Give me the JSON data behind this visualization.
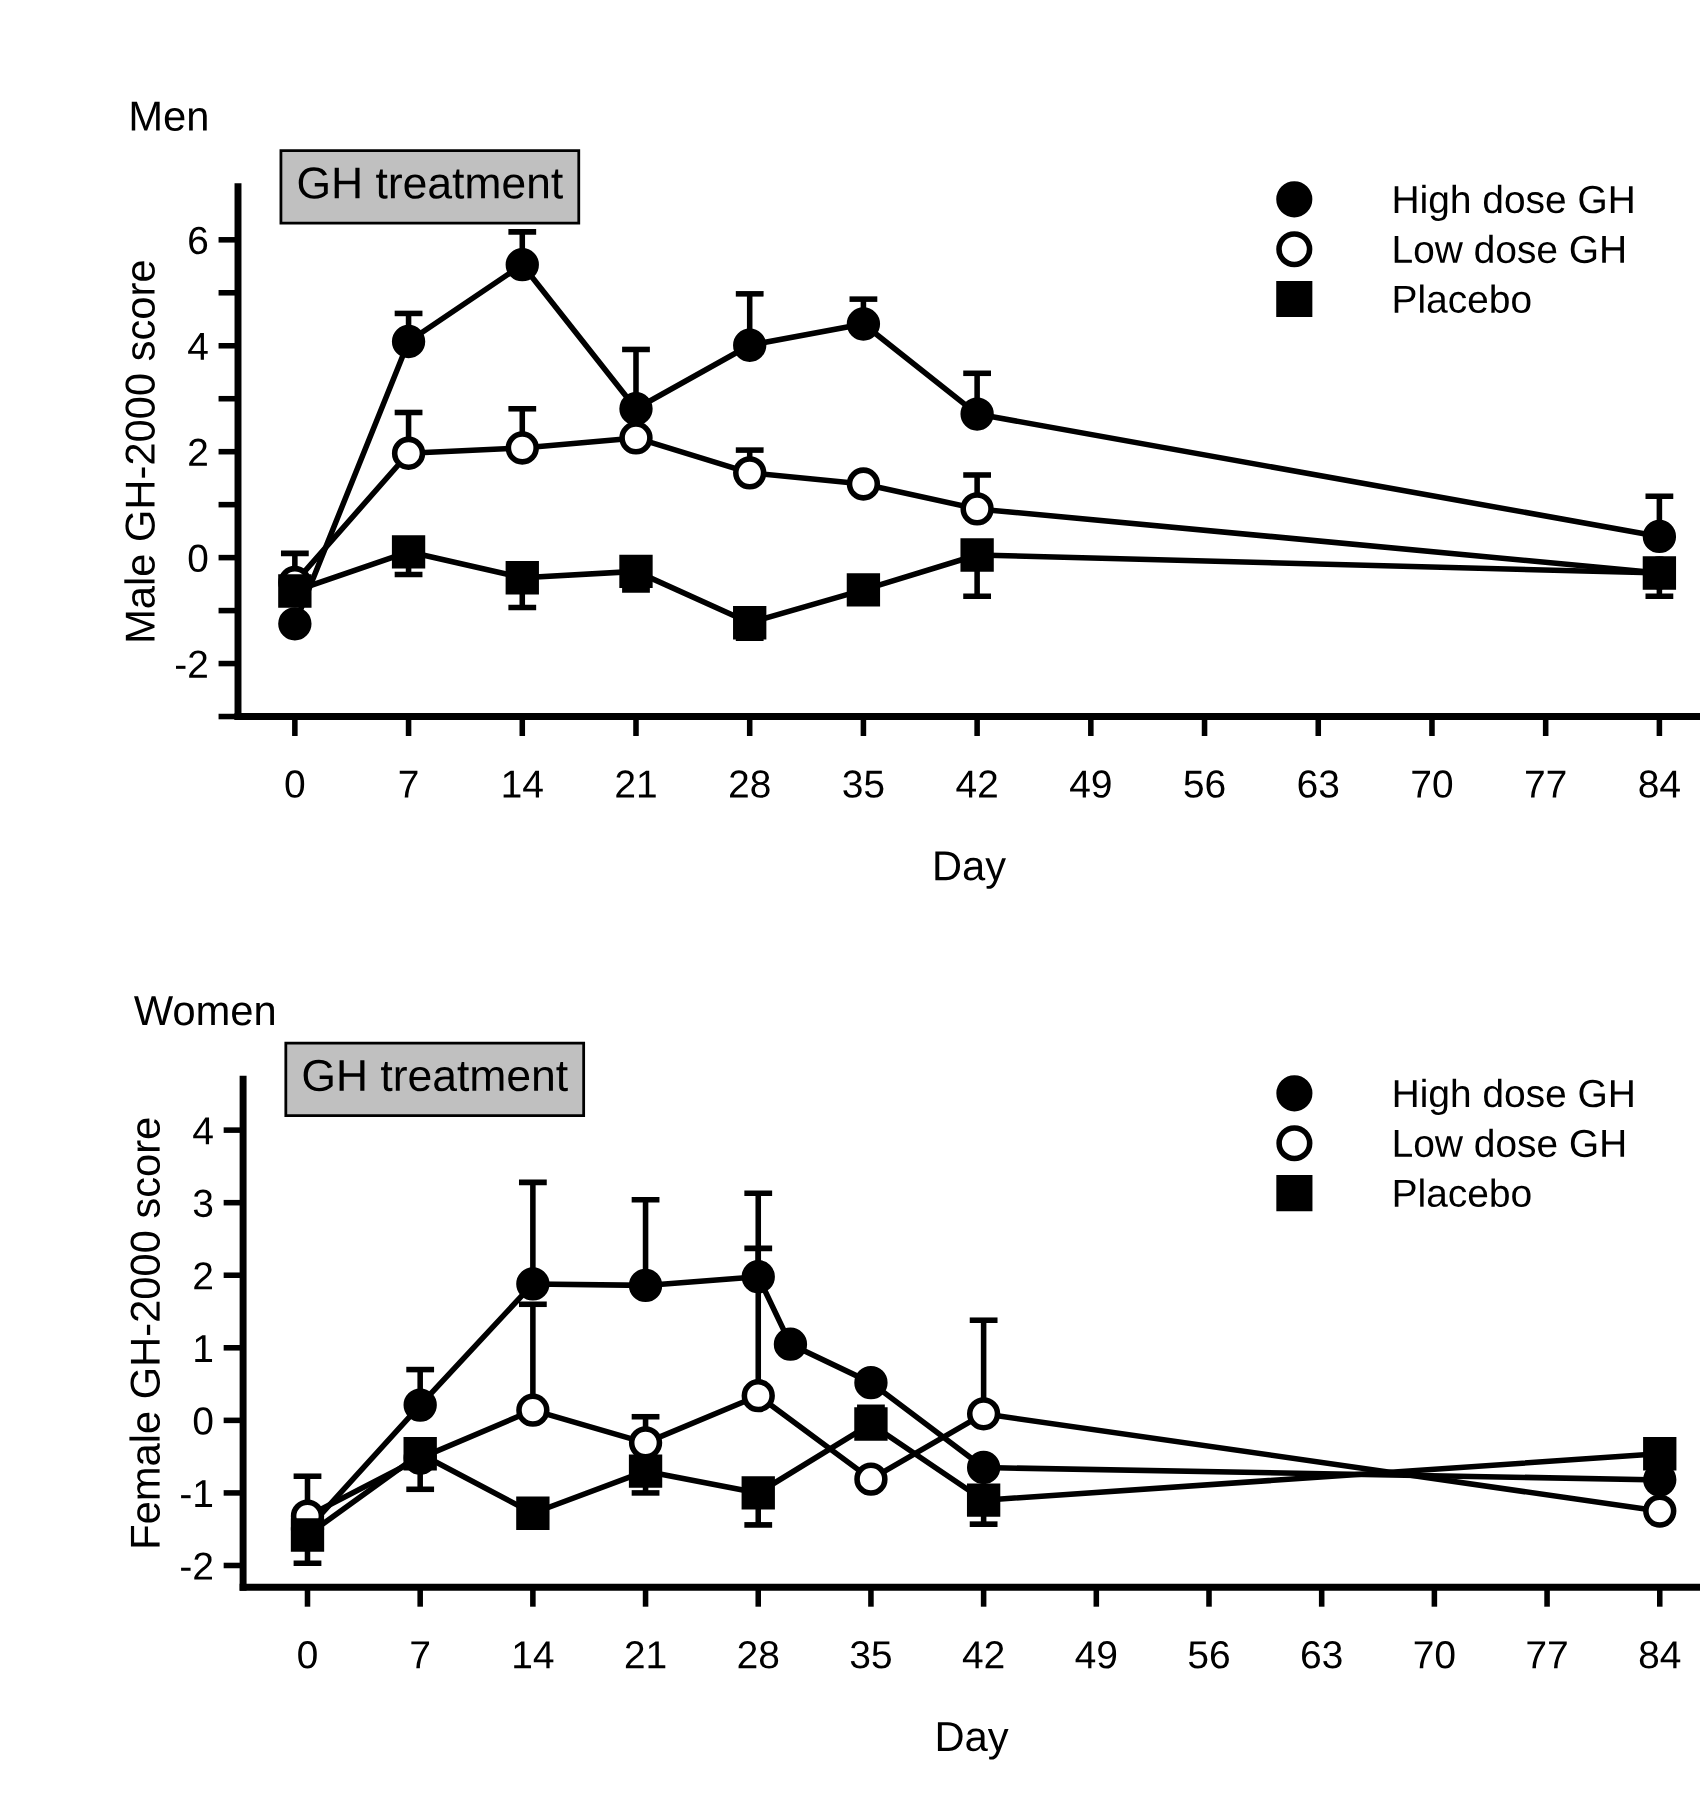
{
  "chart_data": [
    {
      "type": "line",
      "title": "Men",
      "xlabel": "Day",
      "ylabel": "Male GH-2000 score",
      "annotations": [
        "GH treatment"
      ],
      "x": [
        0,
        7,
        14,
        21,
        28,
        35,
        42,
        84
      ],
      "xlim": [
        -3.5,
        86.5
      ],
      "xticks": [
        0,
        7,
        14,
        21,
        28,
        35,
        42,
        49,
        56,
        63,
        70,
        77,
        84
      ],
      "ylim": [
        -3,
        7
      ],
      "yticks": [
        {
          "value": -3,
          "label": null
        },
        -2,
        {
          "value": -1,
          "label": null
        },
        0,
        {
          "value": 1,
          "label": null
        },
        2,
        {
          "value": 3,
          "label": null
        },
        4,
        {
          "value": 5,
          "label": null
        },
        6
      ],
      "grid": false,
      "legend": "top right",
      "line_style": "solid",
      "series": [
        {
          "name": "High dose GH",
          "color": "#000000",
          "marker": "circle",
          "values": [
            -1.25,
            4.08,
            5.53,
            2.81,
            4.01,
            4.41,
            2.71,
            0.4
          ],
          "errors": [
            null,
            [
              4.08,
              4.61
            ],
            [
              5.53,
              6.15
            ],
            [
              2.81,
              3.93
            ],
            [
              4.01,
              4.98
            ],
            [
              4.41,
              4.88
            ],
            [
              2.71,
              3.48
            ],
            [
              0.4,
              1.16
            ]
          ]
        },
        {
          "name": "Low dose GH",
          "color": "#ffffff",
          "marker": "circle",
          "values": [
            -0.47,
            1.97,
            2.07,
            2.26,
            1.6,
            1.39,
            0.92,
            -0.29
          ],
          "errors": [
            [
              -0.47,
              0.08
            ],
            [
              1.97,
              2.74
            ],
            [
              2.07,
              2.81
            ],
            null,
            [
              1.6,
              2.03
            ],
            null,
            [
              0.92,
              1.56
            ],
            null
          ]
        },
        {
          "name": "Placebo",
          "color": "#000000",
          "marker": "square",
          "values": [
            -0.63,
            0.11,
            -0.38,
            -0.26,
            -1.23,
            -0.61,
            0.05,
            -0.29
          ],
          "errors": [
            null,
            [
              -0.32,
              0.11
            ],
            [
              -0.94,
              -0.38
            ],
            [
              -0.61,
              -0.26
            ],
            [
              -1.52,
              -1.23
            ],
            null,
            [
              -0.73,
              0.05
            ],
            [
              -0.73,
              -0.29
            ]
          ]
        }
      ]
    },
    {
      "type": "line",
      "title": "Women",
      "xlabel": "Day",
      "ylabel": "Female GH-2000 score",
      "annotations": [
        "GH treatment"
      ],
      "xlim": [
        -4,
        86.5
      ],
      "xticks": [
        0,
        7,
        14,
        21,
        28,
        35,
        42,
        49,
        56,
        63,
        70,
        77,
        84
      ],
      "ylim": [
        -2.3,
        4.7
      ],
      "yticks": [
        -2,
        -1,
        0,
        1,
        2,
        3,
        4
      ],
      "grid": false,
      "legend": "top right",
      "line_style": "solid",
      "series": [
        {
          "name": "High dose GH",
          "color": "#000000",
          "marker": "circle",
          "x": [
            0,
            7,
            14,
            21,
            28,
            30,
            35,
            42,
            84
          ],
          "values": [
            -1.5,
            0.21,
            1.88,
            1.86,
            1.98,
            1.05,
            0.52,
            -0.65,
            -0.82
          ],
          "errors": [
            null,
            [
              0.21,
              0.7
            ],
            [
              1.88,
              3.28
            ],
            [
              1.86,
              3.04
            ],
            [
              1.98,
              3.13
            ],
            null,
            null,
            null,
            null
          ]
        },
        {
          "name": "Low dose GH",
          "color": "#ffffff",
          "marker": "circle",
          "x": [
            0,
            7,
            14,
            21,
            28,
            35,
            42,
            84
          ],
          "values": [
            -1.32,
            -0.52,
            0.14,
            -0.31,
            0.34,
            -0.81,
            0.09,
            -1.25
          ],
          "errors": [
            [
              -1.32,
              -0.77
            ],
            [
              -0.95,
              -0.52
            ],
            [
              0.14,
              1.6
            ],
            [
              -0.31,
              0.05
            ],
            [
              0.34,
              2.37
            ],
            null,
            [
              0.09,
              1.38
            ],
            null
          ]
        },
        {
          "name": "Placebo",
          "color": "#000000",
          "marker": "square",
          "x": [
            0,
            7,
            14,
            21,
            28,
            35,
            42,
            84
          ],
          "values": [
            -1.58,
            -0.46,
            -1.28,
            -0.7,
            -1.0,
            -0.05,
            -1.1,
            -0.46
          ],
          "errors": [
            [
              -1.97,
              -1.58
            ],
            null,
            null,
            [
              -1.0,
              -0.7
            ],
            [
              -1.44,
              -1.0
            ],
            [
              -0.05,
              0.18
            ],
            [
              -1.43,
              -1.1
            ],
            null
          ]
        }
      ]
    }
  ]
}
